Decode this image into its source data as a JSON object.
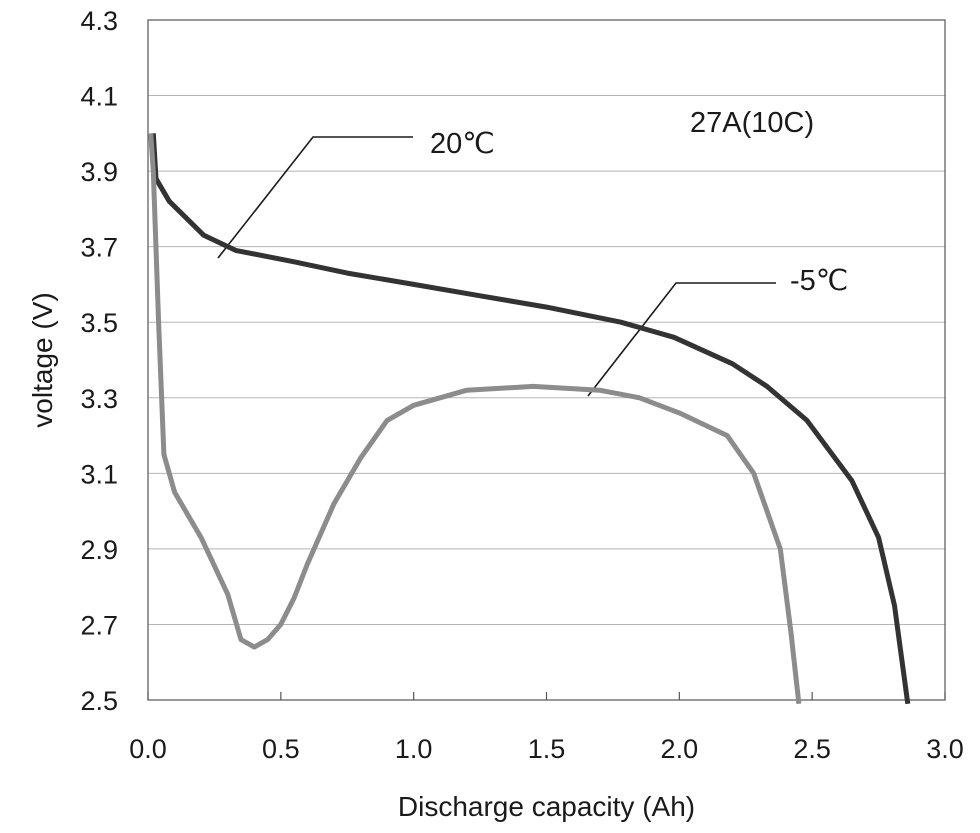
{
  "chart_data": {
    "type": "line",
    "title": "",
    "xlabel": "Discharge capacity (Ah)",
    "ylabel": "voltage (V)",
    "xlim": [
      0.0,
      3.0
    ],
    "ylim": [
      2.5,
      4.3
    ],
    "x_ticks": [
      "0.0",
      "0.5",
      "1.0",
      "1.5",
      "2.0",
      "2.5",
      "3.0"
    ],
    "y_ticks": [
      "2.5",
      "2.7",
      "2.9",
      "3.1",
      "3.3",
      "3.5",
      "3.7",
      "3.9",
      "4.1",
      "4.3"
    ],
    "grid": "horizontal",
    "annotations": [
      "27A(10C)"
    ],
    "series": [
      {
        "name": "20℃",
        "color": "#333333",
        "x": [
          0.02,
          0.03,
          0.08,
          0.21,
          0.33,
          0.55,
          0.75,
          1.0,
          1.25,
          1.5,
          1.78,
          1.98,
          2.2,
          2.33,
          2.48,
          2.65,
          2.75,
          2.81,
          2.86
        ],
        "y": [
          4.0,
          3.88,
          3.82,
          3.73,
          3.69,
          3.66,
          3.63,
          3.6,
          3.57,
          3.54,
          3.5,
          3.46,
          3.39,
          3.33,
          3.24,
          3.08,
          2.93,
          2.75,
          2.49
        ]
      },
      {
        "name": "-5℃",
        "color": "#8c8c8c",
        "x": [
          0.01,
          0.02,
          0.04,
          0.06,
          0.1,
          0.2,
          0.3,
          0.35,
          0.4,
          0.45,
          0.5,
          0.55,
          0.6,
          0.7,
          0.8,
          0.9,
          1.0,
          1.2,
          1.45,
          1.7,
          1.85,
          2.0,
          2.18,
          2.28,
          2.33,
          2.38,
          2.42,
          2.45
        ],
        "y": [
          4.0,
          3.9,
          3.5,
          3.15,
          3.05,
          2.93,
          2.78,
          2.66,
          2.64,
          2.66,
          2.7,
          2.77,
          2.86,
          3.02,
          3.14,
          3.24,
          3.28,
          3.32,
          3.33,
          3.32,
          3.3,
          3.26,
          3.2,
          3.1,
          3.0,
          2.9,
          2.68,
          2.49
        ]
      }
    ]
  }
}
